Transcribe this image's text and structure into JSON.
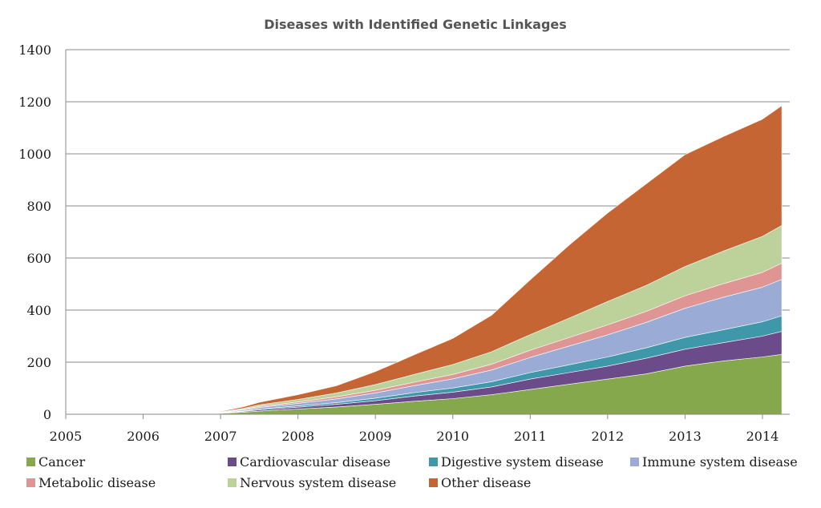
{
  "chart_data": {
    "type": "area",
    "stacked": true,
    "title": "Diseases with Identified Genetic Linkages",
    "xlabel": "",
    "ylabel": "",
    "xlim": [
      2005,
      2014.25
    ],
    "ylim": [
      0,
      1400
    ],
    "x_ticks": [
      "2005",
      "2006",
      "2007",
      "2008",
      "2009",
      "2010",
      "2011",
      "2012",
      "2013",
      "2014"
    ],
    "y_ticks": [
      "0",
      "200",
      "400",
      "600",
      "800",
      "1000",
      "1200",
      "1400"
    ],
    "grid": "horizontal",
    "legend_position": "bottom",
    "x": [
      2005,
      2006,
      2006.6,
      2007,
      2007.3,
      2007.5,
      2008,
      2008.5,
      2009,
      2009.5,
      2010,
      2010.5,
      2011,
      2011.5,
      2012,
      2012.5,
      2013,
      2013.5,
      2014,
      2014.25
    ],
    "series": [
      {
        "name": "Cancer",
        "color": "#84A84B",
        "values": [
          0,
          0,
          0,
          3,
          8,
          12,
          20,
          28,
          38,
          50,
          60,
          75,
          95,
          115,
          135,
          155,
          185,
          205,
          220,
          230
        ]
      },
      {
        "name": "Cardiovascular disease",
        "color": "#6B4B8A",
        "values": [
          0,
          0,
          0,
          1,
          3,
          5,
          7,
          10,
          14,
          20,
          25,
          30,
          40,
          45,
          50,
          60,
          65,
          70,
          80,
          88
        ]
      },
      {
        "name": "Digestive system disease",
        "color": "#3E98AA",
        "values": [
          0,
          0,
          0,
          1,
          2,
          3,
          5,
          7,
          10,
          13,
          16,
          20,
          25,
          30,
          35,
          40,
          45,
          50,
          55,
          60
        ]
      },
      {
        "name": "Immune system disease",
        "color": "#9AACD6",
        "values": [
          0,
          0,
          0,
          1,
          4,
          6,
          10,
          14,
          20,
          27,
          35,
          45,
          58,
          72,
          85,
          98,
          112,
          125,
          133,
          140
        ]
      },
      {
        "name": "Metabolic disease",
        "color": "#DE9594",
        "values": [
          0,
          0,
          0,
          1,
          2,
          4,
          5,
          8,
          10,
          13,
          17,
          22,
          28,
          32,
          38,
          42,
          48,
          52,
          57,
          62
        ]
      },
      {
        "name": "Nervous system disease",
        "color": "#BDD19A",
        "values": [
          0,
          0,
          0,
          2,
          4,
          6,
          10,
          15,
          22,
          30,
          38,
          48,
          60,
          75,
          90,
          100,
          112,
          125,
          138,
          145
        ]
      },
      {
        "name": "Other disease",
        "color": "#C66534",
        "values": [
          0,
          0,
          0,
          2,
          6,
          10,
          18,
          28,
          50,
          75,
          100,
          140,
          210,
          280,
          340,
          390,
          430,
          440,
          450,
          460
        ]
      }
    ]
  }
}
